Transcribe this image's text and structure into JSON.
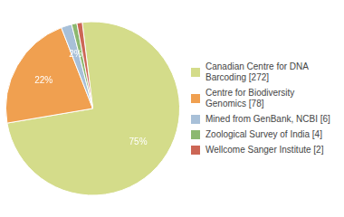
{
  "chart_data": {
    "type": "pie",
    "categories": [
      "Canadian Centre for DNA\nBarcoding [272]",
      "Centre for Biodiversity\nGenomics [78]",
      "Mined from GenBank, NCBI [6]",
      "Zoological Survey of India [4]",
      "Wellcome Sanger Institute [2]"
    ],
    "values": [
      75,
      22,
      2,
      1,
      1
    ],
    "value_labels": [
      "75%",
      "22%",
      "2%",
      null,
      null
    ],
    "colors": [
      "#d4dc8a",
      "#f0a050",
      "#a8c0d8",
      "#8cb870",
      "#cc6655"
    ],
    "data_labels": true,
    "legend": "right"
  }
}
